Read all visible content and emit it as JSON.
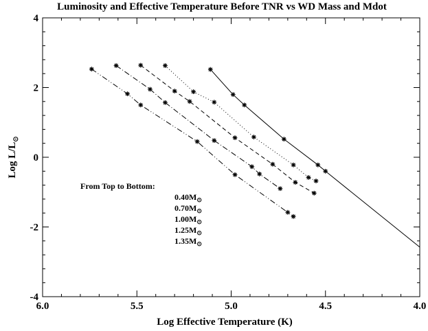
{
  "chart_data": {
    "type": "line",
    "title": "Luminosity and Effective Temperature Before TNR vs WD Mass and Mdot",
    "xlabel": "Log Effective Temperature (K)",
    "ylabel_main": "Log  L/L",
    "ylabel_sub": "⊙",
    "xlim": [
      6.0,
      4.0
    ],
    "ylim": [
      -4,
      4
    ],
    "x_ticks": [
      6.0,
      5.5,
      5.0,
      4.5,
      4.0
    ],
    "x_tick_labels": [
      "6.0",
      "5.5",
      "5.0",
      "4.5",
      "4.0"
    ],
    "y_ticks": [
      4,
      2,
      0,
      -2,
      -4
    ],
    "y_tick_labels": [
      "4",
      "2",
      "0",
      "-2",
      "-4"
    ],
    "grid": false,
    "legend": {
      "heading": "From Top to Bottom:",
      "sun_symbol": "⊙",
      "entries": [
        {
          "value": "0.40M"
        },
        {
          "value": "0.70M"
        },
        {
          "value": "1.00M"
        },
        {
          "value": "1.25M"
        },
        {
          "value": "1.35M"
        }
      ]
    },
    "series": [
      {
        "line_style": "solid",
        "x": [
          5.11,
          4.99,
          4.93,
          4.72,
          4.54,
          4.5,
          4.0
        ],
        "y": [
          2.52,
          1.8,
          1.5,
          0.52,
          -0.22,
          -0.4,
          -2.58
        ],
        "markers": [
          true,
          true,
          true,
          true,
          true,
          true,
          false
        ]
      },
      {
        "line_style": "dotted",
        "x": [
          5.35,
          5.2,
          5.09,
          4.88,
          4.67,
          4.59,
          4.55
        ],
        "y": [
          2.63,
          1.88,
          1.58,
          0.58,
          -0.22,
          -0.58,
          -0.68
        ],
        "markers": [
          true,
          true,
          true,
          true,
          true,
          true,
          true
        ]
      },
      {
        "line_style": "dashed",
        "x": [
          5.48,
          5.3,
          5.22,
          4.98,
          4.78,
          4.66,
          4.56
        ],
        "y": [
          2.64,
          1.9,
          1.6,
          0.56,
          -0.2,
          -0.72,
          -1.03
        ],
        "markers": [
          true,
          true,
          true,
          true,
          true,
          true,
          true
        ]
      },
      {
        "line_style": "dash-dot",
        "x": [
          5.61,
          5.43,
          5.35,
          5.09,
          4.89,
          4.85,
          4.74
        ],
        "y": [
          2.63,
          1.95,
          1.57,
          0.48,
          -0.27,
          -0.48,
          -0.9
        ],
        "markers": [
          true,
          true,
          true,
          true,
          true,
          true,
          true
        ]
      },
      {
        "line_style": "dash-dot-dot",
        "x": [
          5.74,
          5.55,
          5.48,
          5.18,
          4.98,
          4.7,
          4.67
        ],
        "y": [
          2.53,
          1.82,
          1.5,
          0.45,
          -0.5,
          -1.58,
          -1.7
        ],
        "markers": [
          true,
          true,
          true,
          true,
          true,
          true,
          true
        ]
      }
    ]
  }
}
